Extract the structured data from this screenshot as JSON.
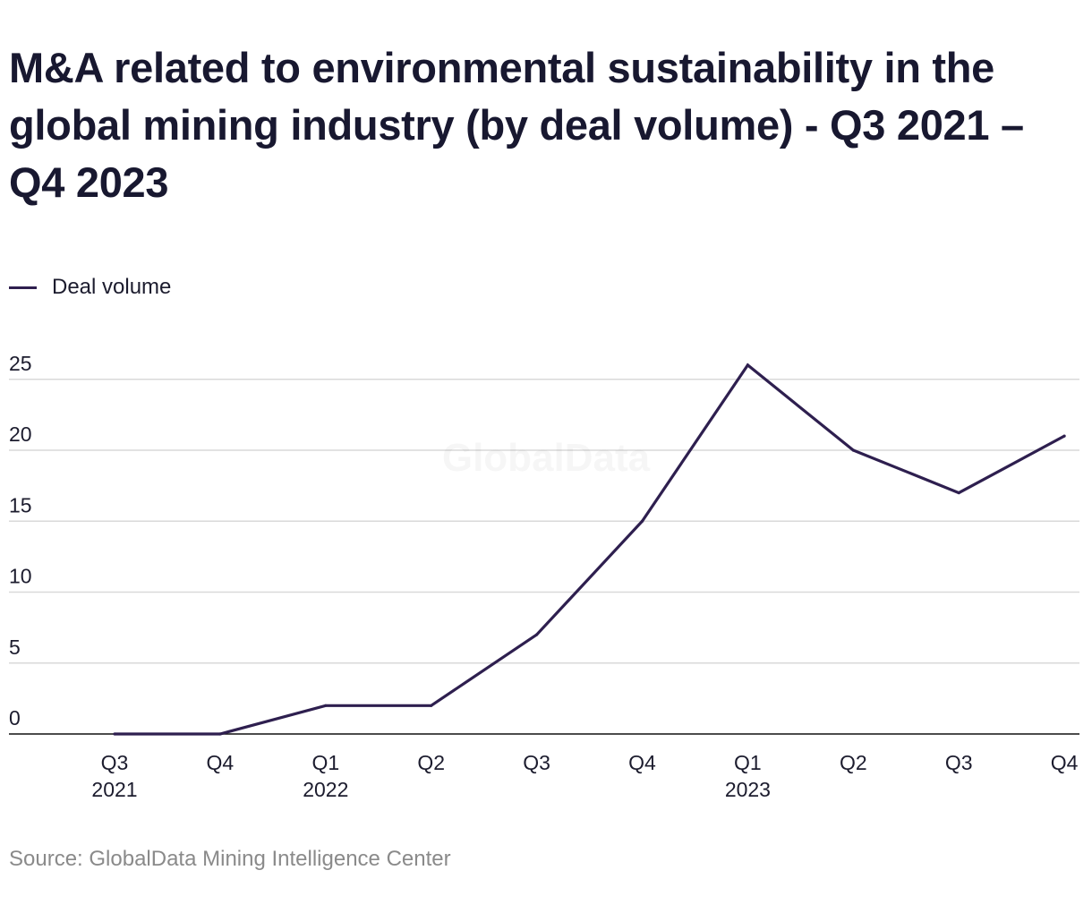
{
  "page": {
    "title": "M&A related to environmental sustainability in the global mining industry (by deal volume) - Q3 2021 – Q4 2023",
    "source": "Source: GlobalData Mining Intelligence Center",
    "watermark": "GlobalData"
  },
  "chart_data": {
    "type": "line",
    "title": "M&A related to environmental sustainability in the global mining industry (by deal volume) - Q3 2021 – Q4 2023",
    "xlabel": "",
    "ylabel": "",
    "categories": [
      [
        "Q3",
        "2021"
      ],
      [
        "Q4"
      ],
      [
        "Q1",
        "2022"
      ],
      [
        "Q2"
      ],
      [
        "Q3"
      ],
      [
        "Q4"
      ],
      [
        "Q1",
        "2023"
      ],
      [
        "Q2"
      ],
      [
        "Q3"
      ],
      [
        "Q4"
      ]
    ],
    "series": [
      {
        "name": "Deal volume",
        "color": "#2e1f4f",
        "values": [
          0,
          0,
          2,
          2,
          7,
          15,
          26,
          20,
          17,
          21
        ]
      }
    ],
    "ylim": [
      0,
      25
    ],
    "yticks": [
      0,
      5,
      10,
      15,
      20,
      25
    ],
    "grid": true,
    "legend": "top-left"
  }
}
